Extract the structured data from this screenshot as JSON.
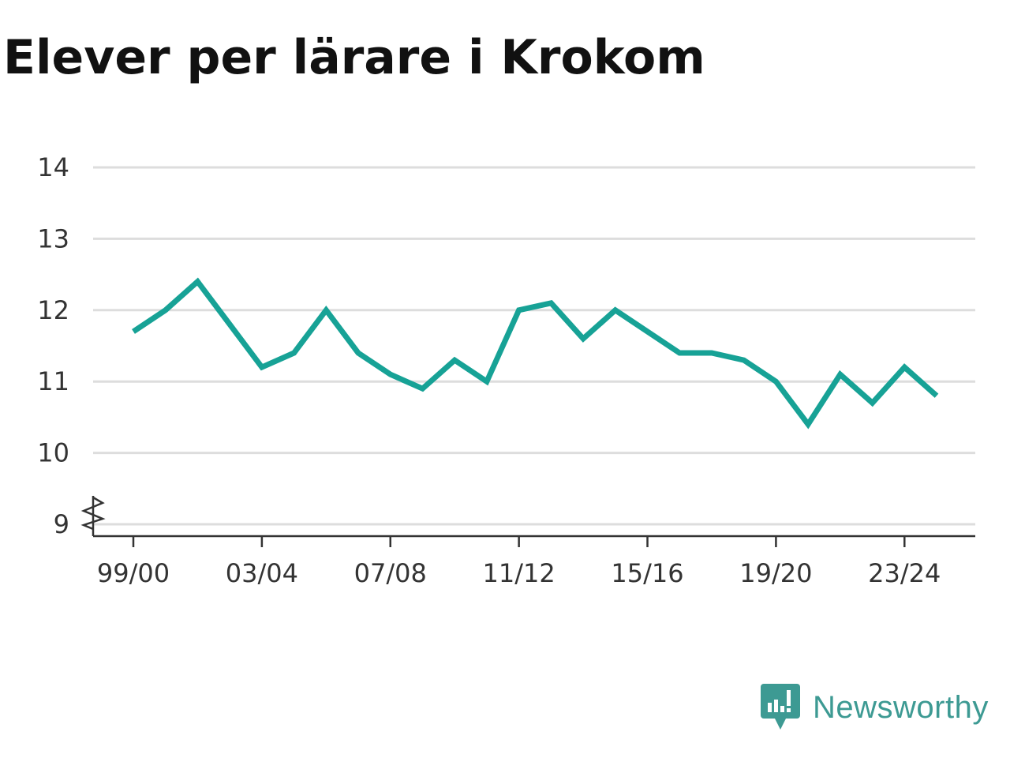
{
  "title": "Elever per lärare i Krokom",
  "brand": {
    "name": "Newsworthy",
    "icon": "newsworthy-logo-icon"
  },
  "colors": {
    "line": "#17a296",
    "grid": "#dddddd",
    "axis": "#333333",
    "brand": "#3d9a93"
  },
  "chart_data": {
    "type": "line",
    "title": "Elever per lärare i Krokom",
    "xlabel": "",
    "ylabel": "",
    "ylim": [
      9,
      14
    ],
    "y_axis_break": true,
    "y_ticks": [
      "9",
      "10",
      "11",
      "12",
      "13",
      "14"
    ],
    "x_ticks": [
      "99/00",
      "03/04",
      "07/08",
      "11/12",
      "15/16",
      "19/20",
      "23/24"
    ],
    "grid": true,
    "x": [
      "99/00",
      "00/01",
      "01/02",
      "02/03",
      "03/04",
      "04/05",
      "05/06",
      "06/07",
      "07/08",
      "08/09",
      "09/10",
      "10/11",
      "11/12",
      "12/13",
      "13/14",
      "14/15",
      "15/16",
      "16/17",
      "17/18",
      "18/19",
      "19/20",
      "20/21",
      "21/22",
      "22/23",
      "23/24",
      "24/25"
    ],
    "series": [
      {
        "values": [
          11.7,
          12.0,
          12.4,
          11.8,
          11.2,
          11.4,
          12.0,
          11.4,
          11.1,
          10.9,
          11.3,
          11.0,
          12.0,
          12.1,
          11.6,
          12.0,
          11.7,
          11.4,
          11.4,
          11.3,
          11.0,
          10.4,
          11.1,
          10.7,
          11.2,
          10.8
        ]
      }
    ]
  }
}
